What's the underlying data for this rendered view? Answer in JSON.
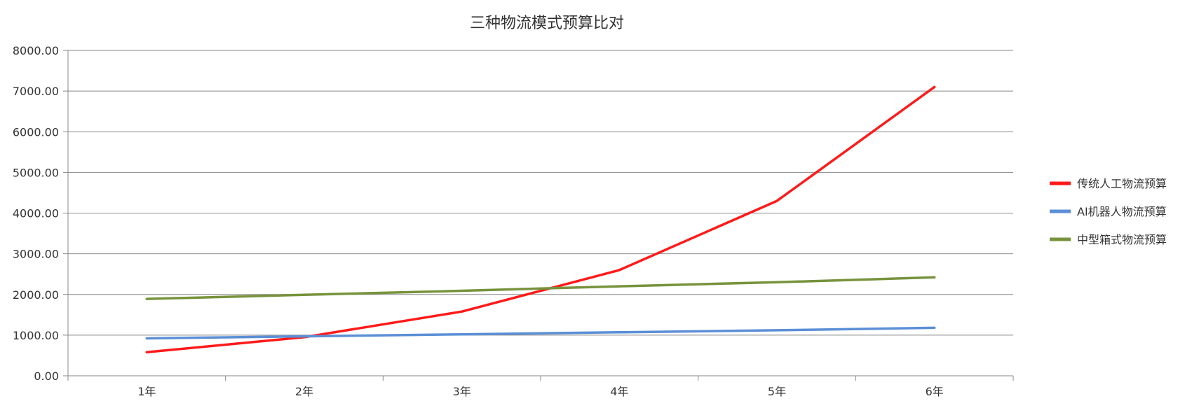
{
  "chart_data": {
    "type": "line",
    "title": "三种物流模式预算比对",
    "categories": [
      "1年",
      "2年",
      "3年",
      "4年",
      "5年",
      "6年"
    ],
    "yticks": [
      "0.00",
      "1000.00",
      "2000.00",
      "3000.00",
      "4000.00",
      "5000.00",
      "6000.00",
      "7000.00",
      "8000.00"
    ],
    "ylim": [
      0,
      8000
    ],
    "grid": "horizontal",
    "legend_position": "right",
    "series": [
      {
        "name": "传统人工物流预算",
        "color": "#ff1a1a",
        "values": [
          580,
          950,
          1580,
          2600,
          4300,
          7100
        ]
      },
      {
        "name": "AI机器人物流预算",
        "color": "#5b8fd6",
        "values": [
          920,
          970,
          1020,
          1070,
          1120,
          1180
        ]
      },
      {
        "name": "中型箱式物流预算",
        "color": "#76933c",
        "values": [
          1890,
          1990,
          2090,
          2200,
          2300,
          2420
        ]
      }
    ]
  }
}
